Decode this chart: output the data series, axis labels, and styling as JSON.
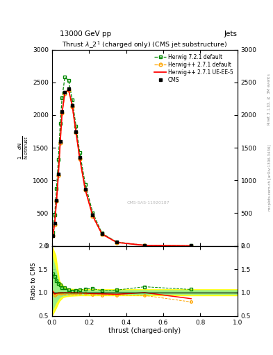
{
  "title": "Thrust $\\lambda\\_2^1$ (charged only) (CMS jet substructure)",
  "top_left_label": "13000 GeV pp",
  "top_right_label": "Jets",
  "right_label_main": "Rivet 3.1.10, $\\geq$ 3M events",
  "right_label_sub": "mcplots.cern.ch [arXiv:1306.3436]",
  "watermark": "CMS-SAS-11920187",
  "xlabel": "thrust (charged-only)",
  "ylabel_main": "$\\frac{1}{\\mathrm{N}}\\frac{d^2\\mathrm{N}}{d\\,\\mathrm{p}\\,d\\,\\mathrm{lambda}}$",
  "ylabel_ratio": "Ratio to CMS",
  "xlim": [
    0.0,
    1.0
  ],
  "ylim_main": [
    0,
    3000
  ],
  "ylim_ratio": [
    0.5,
    2.0
  ],
  "yticks_main": [
    0,
    500,
    1000,
    1500,
    2000,
    2500,
    3000
  ],
  "yticks_ratio": [
    0.5,
    1.0,
    1.5,
    2.0
  ],
  "cms_color": "#000000",
  "herwig_default_color": "#FFA500",
  "herwig_ueee5_color": "#FF0000",
  "herwig721_color": "#008800",
  "x_data": [
    0.005,
    0.015,
    0.025,
    0.035,
    0.045,
    0.055,
    0.07,
    0.09,
    0.11,
    0.13,
    0.15,
    0.18,
    0.22,
    0.27,
    0.35,
    0.5,
    0.75
  ],
  "cms_y": [
    150,
    350,
    700,
    1100,
    1600,
    2050,
    2350,
    2400,
    2150,
    1750,
    1350,
    870,
    470,
    185,
    55,
    8,
    1.5
  ],
  "herwig_default_y": [
    150,
    330,
    680,
    1080,
    1580,
    2030,
    2330,
    2380,
    2130,
    1730,
    1330,
    850,
    450,
    175,
    52,
    7.5,
    1.2
  ],
  "herwig_ueee5_y": [
    155,
    340,
    690,
    1090,
    1590,
    2040,
    2340,
    2390,
    2140,
    1740,
    1340,
    860,
    460,
    180,
    53,
    8.0,
    1.3
  ],
  "herwig721_y": [
    210,
    470,
    880,
    1320,
    1870,
    2270,
    2580,
    2530,
    2230,
    1830,
    1430,
    940,
    510,
    193,
    58,
    9,
    1.6
  ],
  "x_band": [
    0.0,
    0.02,
    0.04,
    0.06,
    0.08,
    0.1,
    0.15,
    0.2,
    0.3,
    0.4,
    0.5,
    0.6,
    0.7,
    0.8,
    0.9,
    1.0
  ],
  "band_yellow_low": [
    0.5,
    0.65,
    0.82,
    0.9,
    0.92,
    0.93,
    0.94,
    0.94,
    0.94,
    0.94,
    0.94,
    0.94,
    0.94,
    0.94,
    0.94,
    0.94
  ],
  "band_yellow_high": [
    2.0,
    1.8,
    1.25,
    1.15,
    1.1,
    1.08,
    1.07,
    1.07,
    1.07,
    1.07,
    1.07,
    1.07,
    1.07,
    1.07,
    1.07,
    1.07
  ],
  "band_green_low": [
    0.6,
    0.78,
    0.9,
    0.94,
    0.95,
    0.96,
    0.97,
    0.97,
    0.97,
    0.97,
    0.97,
    0.97,
    0.97,
    0.97,
    0.97,
    0.97
  ],
  "band_green_high": [
    1.8,
    1.5,
    1.15,
    1.09,
    1.07,
    1.055,
    1.05,
    1.05,
    1.05,
    1.05,
    1.05,
    1.05,
    1.05,
    1.05,
    1.05,
    1.05
  ],
  "ratio_herwig_default": [
    1.0,
    0.94,
    0.97,
    0.98,
    0.988,
    0.99,
    0.991,
    0.992,
    0.991,
    0.99,
    0.986,
    0.978,
    0.957,
    0.946,
    0.945,
    0.938,
    0.8
  ],
  "ratio_herwig_ueee5": [
    1.03,
    0.97,
    0.986,
    0.991,
    0.994,
    0.995,
    0.996,
    0.996,
    0.995,
    0.994,
    0.993,
    0.989,
    0.979,
    0.973,
    0.964,
    1.0,
    0.87
  ],
  "ratio_herwig721": [
    1.4,
    1.34,
    1.257,
    1.2,
    1.168,
    1.108,
    1.097,
    1.054,
    1.037,
    1.046,
    1.057,
    1.08,
    1.085,
    1.043,
    1.055,
    1.125,
    1.067
  ],
  "background_color": "#ffffff"
}
